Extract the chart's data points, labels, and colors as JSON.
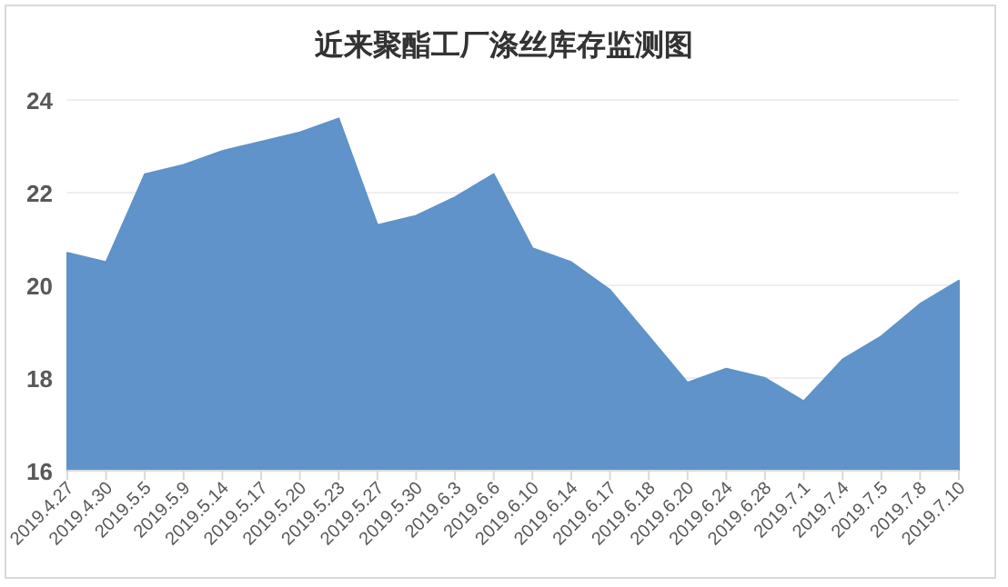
{
  "chart_data": {
    "type": "area",
    "title": "近来聚酯工厂涤丝库存监测图",
    "categories": [
      "2019.4.27",
      "2019.4.30",
      "2019.5.5",
      "2019.5.9",
      "2019.5.14",
      "2019.5.17",
      "2019.5.20",
      "2019.5.23",
      "2019.5.27",
      "2019.5.30",
      "2019.6.3",
      "2019.6.6",
      "2019.6.10",
      "2019.6.14",
      "2019.6.17",
      "2019.6.18",
      "2019.6.20",
      "2019.6.24",
      "2019.6.28",
      "2019.7.1",
      "2019.7.4",
      "2019.7.5",
      "2019.7.8",
      "2019.7.10"
    ],
    "values": [
      20.7,
      20.5,
      22.4,
      22.6,
      22.9,
      23.1,
      23.3,
      23.6,
      21.3,
      21.5,
      21.9,
      22.4,
      20.8,
      20.5,
      19.9,
      18.9,
      17.9,
      18.2,
      18.0,
      17.5,
      18.4,
      18.9,
      19.6,
      20.1
    ],
    "color": "#5f93c9",
    "ylim": [
      16,
      24
    ],
    "yticks": [
      16,
      18,
      20,
      22,
      24
    ],
    "grid": "y"
  }
}
